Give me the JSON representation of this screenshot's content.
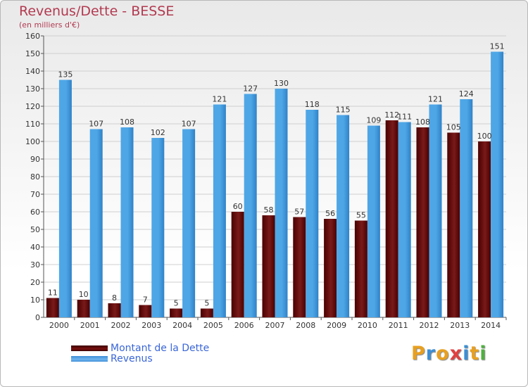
{
  "header": {
    "title": "Revenus/Dette - BESSE",
    "subtitle": "(en milliers d'€)"
  },
  "colors": {
    "dette": "#7a1a1a",
    "dette_dark": "#4a0000",
    "revenus": "#4ea6e6",
    "revenus_dark": "#2f82c8",
    "title": "#b23a50",
    "axis_text": "#333333",
    "grid": "#cfcfcf"
  },
  "chart_data": {
    "type": "bar",
    "title": "Revenus/Dette - BESSE",
    "subtitle": "(en milliers d'€)",
    "xlabel": "",
    "ylabel": "",
    "ylim": [
      0,
      160
    ],
    "yticks": [
      0,
      10,
      20,
      30,
      40,
      50,
      60,
      70,
      80,
      90,
      100,
      110,
      120,
      130,
      140,
      150,
      160
    ],
    "grid": true,
    "legend_position": "bottom-left",
    "categories": [
      "2000",
      "2001",
      "2002",
      "2003",
      "2004",
      "2005",
      "2006",
      "2007",
      "2008",
      "2009",
      "2010",
      "2011",
      "2012",
      "2013",
      "2014"
    ],
    "series": [
      {
        "name": "Montant de la Dette",
        "values": [
          11,
          10,
          8,
          7,
          5,
          5,
          60,
          58,
          57,
          56,
          55,
          112,
          108,
          105,
          100
        ]
      },
      {
        "name": "Revenus",
        "values": [
          135,
          107,
          108,
          102,
          107,
          121,
          127,
          130,
          118,
          115,
          109,
          111,
          121,
          124,
          151
        ]
      }
    ]
  },
  "legend": {
    "items": [
      {
        "label": "Montant de la Dette"
      },
      {
        "label": "Revenus"
      }
    ]
  },
  "logo": {
    "letters": [
      "P",
      "r",
      "o",
      "x",
      "i",
      "t",
      "i"
    ],
    "colors": [
      "#e8a020",
      "#3b8fd6",
      "#e8a020",
      "#e04040",
      "#3b8fd6",
      "#e8a020",
      "#50b040"
    ]
  }
}
